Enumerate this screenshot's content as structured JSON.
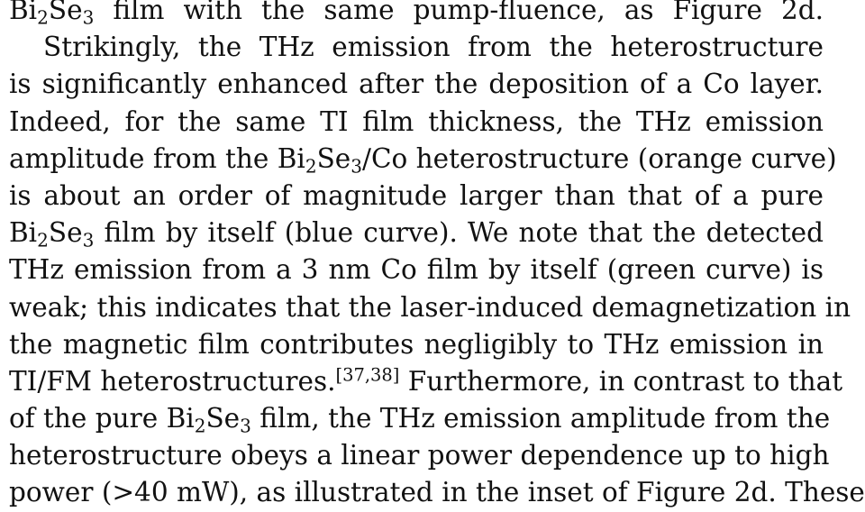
{
  "paragraph": {
    "lines": [
      [
        {
          "t": "Bi"
        },
        {
          "t": "2",
          "sub": true
        },
        {
          "t": "Se"
        },
        {
          "t": "3",
          "sub": true
        },
        {
          "t": " film with the same pump-fluence, as Figure 2d."
        }
      ],
      [
        {
          "t": "Strikingly, the THz emission from the heterostructure"
        }
      ],
      [
        {
          "t": "is significantly enhanced after the deposition of a Co layer."
        }
      ],
      [
        {
          "t": "Indeed, for the same TI film thickness, the THz emission"
        }
      ],
      [
        {
          "t": "amplitude from the Bi"
        },
        {
          "t": "2",
          "sub": true
        },
        {
          "t": "Se"
        },
        {
          "t": "3",
          "sub": true
        },
        {
          "t": "/Co heterostructure (orange curve)"
        }
      ],
      [
        {
          "t": "is about an order of magnitude larger than that of a pure"
        }
      ],
      [
        {
          "t": "Bi"
        },
        {
          "t": "2",
          "sub": true
        },
        {
          "t": "Se"
        },
        {
          "t": "3",
          "sub": true
        },
        {
          "t": " film by itself (blue curve). We note that the detected"
        }
      ],
      [
        {
          "t": "THz emission from a 3 nm Co film by itself (green curve) is"
        }
      ],
      [
        {
          "t": "weak; this indicates that the laser-induced demagnetization in"
        }
      ],
      [
        {
          "t": "the magnetic film contributes negligibly to THz emission in"
        }
      ],
      [
        {
          "t": "TI/FM heterostructures."
        },
        {
          "t": "[37,38]",
          "sup": true
        },
        {
          "t": " Furthermore, in contrast to that"
        }
      ],
      [
        {
          "t": "of the pure Bi"
        },
        {
          "t": "2",
          "sub": true
        },
        {
          "t": "Se"
        },
        {
          "t": "3",
          "sub": true
        },
        {
          "t": " film, the THz emission amplitude from the"
        }
      ],
      [
        {
          "t": "heterostructure obeys a linear power dependence up to high"
        }
      ],
      [
        {
          "t": "power (>40 mW), as illustrated in the inset of Figure 2d. These"
        }
      ]
    ]
  }
}
